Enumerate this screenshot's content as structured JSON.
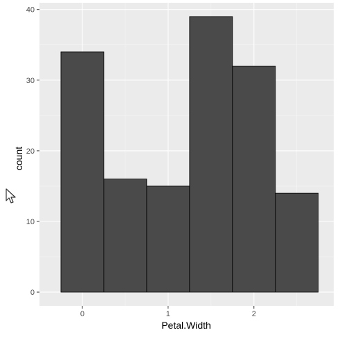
{
  "chart_data": {
    "type": "bar",
    "variant": "histogram",
    "title": "",
    "xlabel": "Petal.Width",
    "ylabel": "count",
    "binwidth": 0.5,
    "bins": [
      {
        "x_start": -0.25,
        "x_end": 0.25,
        "count": 34
      },
      {
        "x_start": 0.25,
        "x_end": 0.75,
        "count": 16
      },
      {
        "x_start": 0.75,
        "x_end": 1.25,
        "count": 15
      },
      {
        "x_start": 1.25,
        "x_end": 1.75,
        "count": 39
      },
      {
        "x_start": 1.75,
        "x_end": 2.25,
        "count": 32
      },
      {
        "x_start": 2.25,
        "x_end": 2.75,
        "count": 14
      }
    ],
    "xlim": [
      -0.5,
      2.93
    ],
    "ylim": [
      -1.95,
      40.95
    ],
    "x_ticks": [
      0,
      1,
      2
    ],
    "x_tick_labels": [
      "0",
      "1",
      "2"
    ],
    "y_ticks": [
      0,
      10,
      20,
      30,
      40
    ],
    "y_tick_labels": [
      "0",
      "10",
      "20",
      "30",
      "40"
    ],
    "grid": true,
    "legend": "none",
    "colors": {
      "panel_background": "#ebebeb",
      "grid_major": "#ffffff",
      "grid_minor": "#f5f5f5",
      "bar_fill": "#4a4a4a",
      "bar_outline": "#000000"
    }
  },
  "cursor": {
    "icon": "mouse-pointer-icon"
  }
}
